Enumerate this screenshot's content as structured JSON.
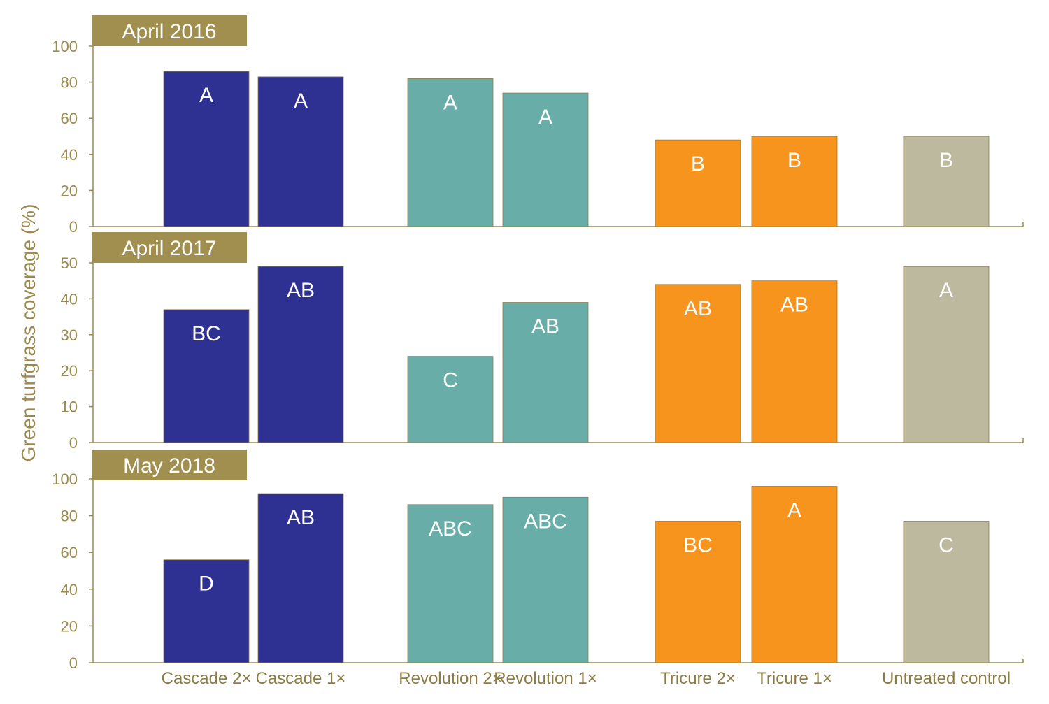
{
  "chart_data": {
    "type": "bar",
    "ylabel": "Green turfgrass coverage (%)",
    "colors": {
      "axis": "#9b8a4e",
      "title_bg": "#a18f4f",
      "Cascade": "#2e3192",
      "Revolution": "#68ada8",
      "Tricure": "#f7941e",
      "Untreated": "#bdb99e"
    },
    "categories": [
      "Cascade 2×",
      "Cascade 1×",
      "Revolution 2×",
      "Revolution 1×",
      "Tricure 2×",
      "Tricure 1×",
      "Untreated control"
    ],
    "category_groups": [
      "Cascade",
      "Cascade",
      "Revolution",
      "Revolution",
      "Tricure",
      "Tricure",
      "Untreated"
    ],
    "panels": [
      {
        "title": "April 2016",
        "ylim": [
          0,
          100
        ],
        "yticks": [
          0,
          20,
          40,
          60,
          80,
          100
        ],
        "values": [
          86,
          83,
          82,
          74,
          48,
          50,
          50
        ],
        "letters": [
          "A",
          "A",
          "A",
          "A",
          "B",
          "B",
          "B"
        ]
      },
      {
        "title": "April 2017",
        "ylim": [
          0,
          50
        ],
        "yticks": [
          0,
          10,
          20,
          30,
          40,
          50
        ],
        "values": [
          37,
          49,
          24,
          39,
          44,
          45,
          49
        ],
        "letters": [
          "BC",
          "AB",
          "C",
          "AB",
          "AB",
          "AB",
          "A"
        ]
      },
      {
        "title": "May 2018",
        "ylim": [
          0,
          100
        ],
        "yticks": [
          0,
          20,
          40,
          60,
          80,
          100
        ],
        "values": [
          56,
          92,
          86,
          90,
          77,
          96,
          77
        ],
        "letters": [
          "D",
          "AB",
          "ABC",
          "ABC",
          "BC",
          "A",
          "C"
        ]
      }
    ]
  }
}
